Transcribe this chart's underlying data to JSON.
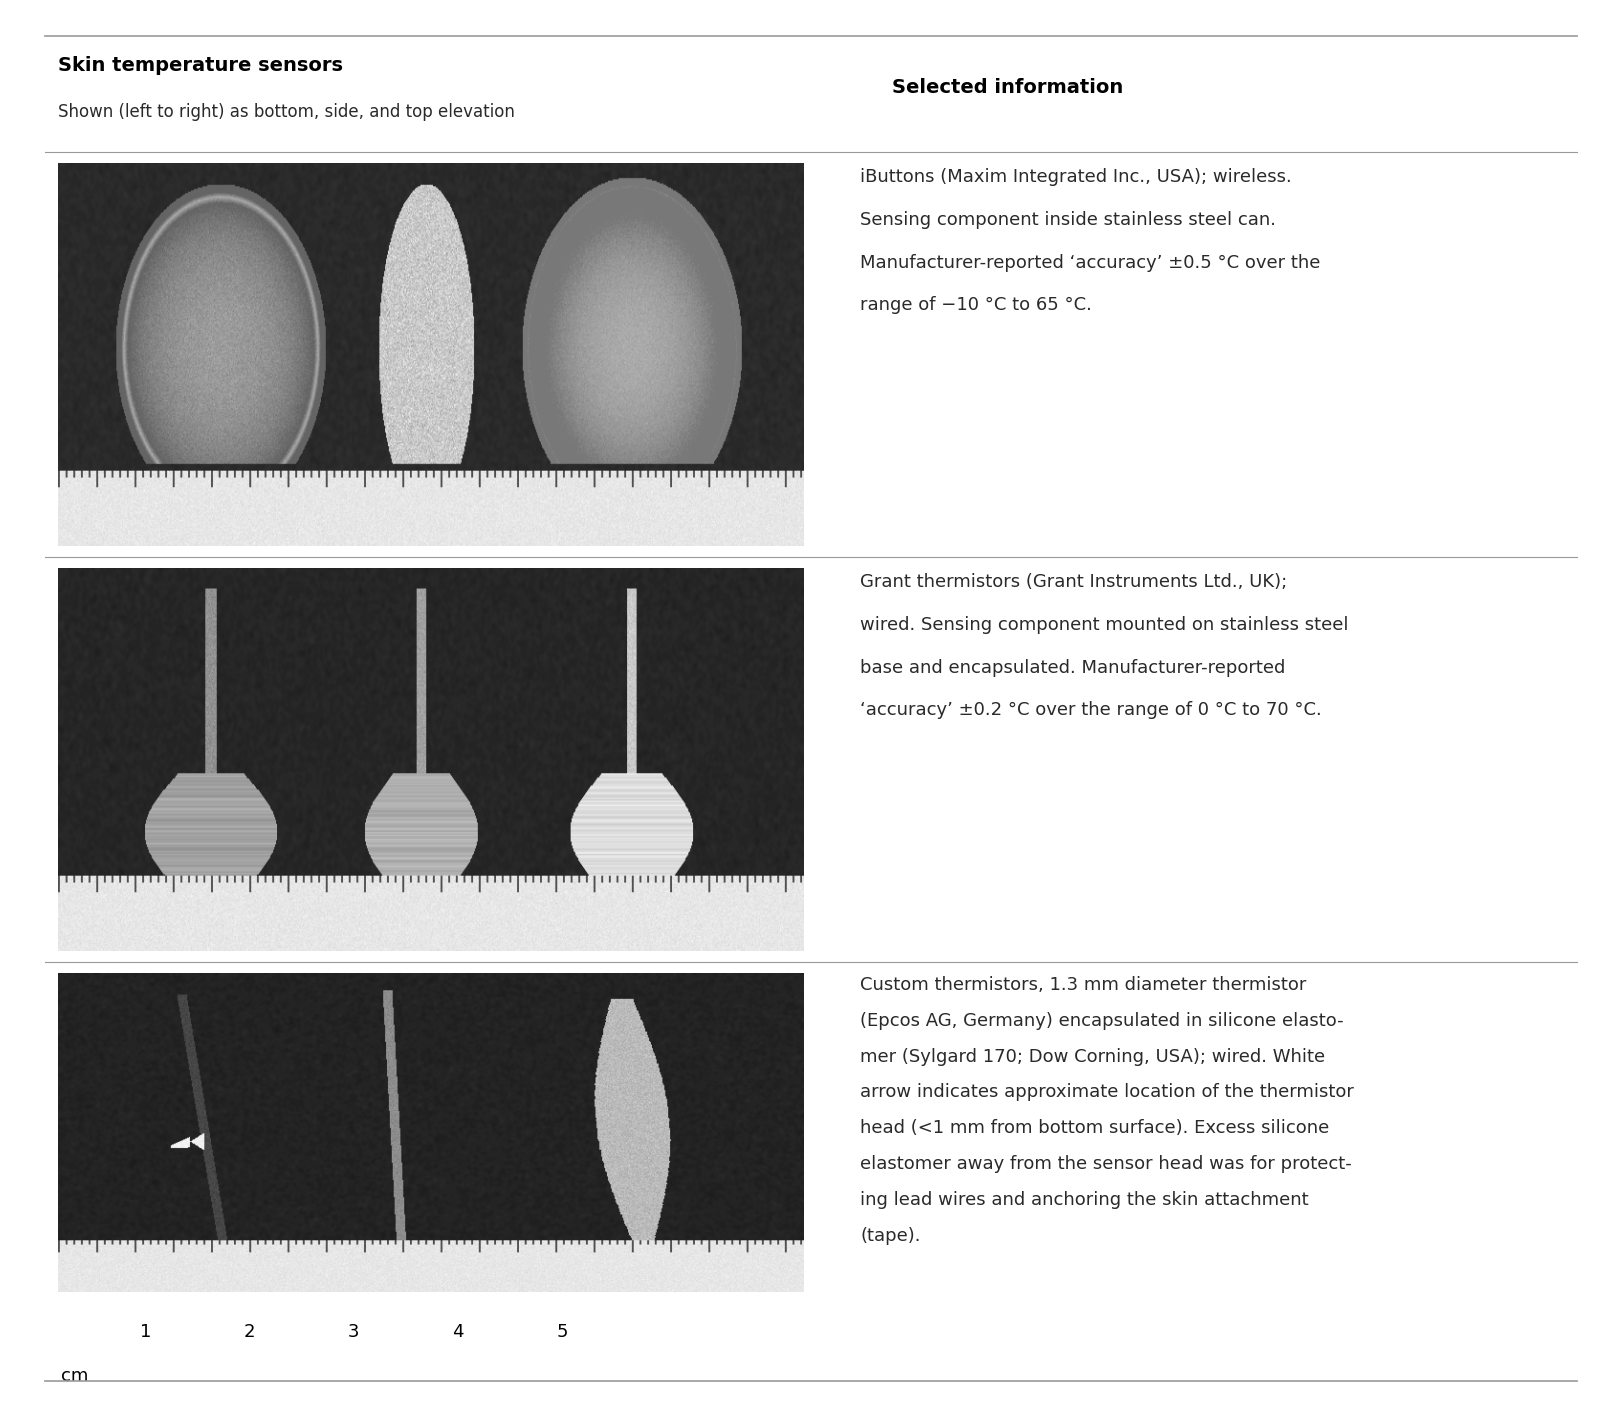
{
  "title": "Skin temperature sensors",
  "subtitle": "Shown (left to right) as bottom, side, and top elevation",
  "col2_header": "Selected information",
  "bg_color": "#ffffff",
  "line_color": "#999999",
  "header_color": "#000000",
  "text_color": "#2a2a2a",
  "row1_info_lines": [
    "iButtons (Maxim Integrated Inc., USA); wireless.",
    "",
    "Sensing component inside stainless steel can.",
    "",
    "Manufacturer-reported ‘accuracy’ ±0.5 °C over the",
    "",
    "range of −10 °C to 65 °C."
  ],
  "row2_info_lines": [
    "Grant thermistors (Grant Instruments Ltd., UK);",
    "",
    "wired. Sensing component mounted on stainless steel",
    "",
    "base and encapsulated. Manufacturer-reported",
    "",
    "‘accuracy’ ±0.2 °C over the range of 0 °C to 70 °C."
  ],
  "row3_info_lines": [
    "Custom thermistors, 1.3 mm diameter thermistor",
    "",
    "(Epcos AG, Germany) encapsulated in silicone elasto-",
    "",
    "mer (Sylgard 170; Dow Corning, USA); wired. White",
    "",
    "arrow indicates approximate location of the thermistor",
    "",
    "head (<1 mm from bottom surface). Excess silicone",
    "",
    "elastomer away from the sensor head was for protect-",
    "",
    "ing lead wires and anchoring the skin attachment",
    "",
    "(tape)."
  ],
  "xlabel": "cm",
  "xtick_labels": [
    "1",
    "2",
    "3",
    "4",
    "5"
  ],
  "title_fontsize": 14,
  "subtitle_fontsize": 12,
  "info_fontsize": 13,
  "col2_header_fontsize": 14
}
